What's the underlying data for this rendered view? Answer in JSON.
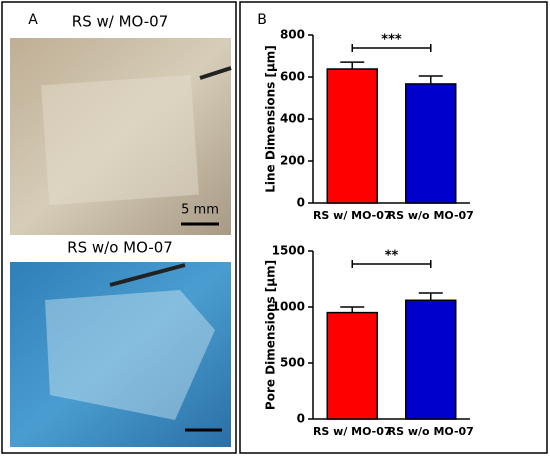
{
  "panel_a": {
    "label": "A",
    "photos": [
      {
        "caption": "RS w/ MO-07",
        "scale_bar": "5 mm"
      },
      {
        "caption": "RS w/o MO-07"
      }
    ]
  },
  "panel_b": {
    "label": "B"
  },
  "chart_data": [
    {
      "type": "bar",
      "y_label": "Line Dimensions [μm]",
      "categories": [
        "RS w/ MO-07",
        "RS w/o MO-07"
      ],
      "values": [
        638,
        567
      ],
      "errors": [
        33,
        38
      ],
      "colors": [
        "#ff0000",
        "#0000cc"
      ],
      "ylim": [
        0,
        800
      ],
      "yticks": [
        0,
        200,
        400,
        600,
        800
      ],
      "significance": "***"
    },
    {
      "type": "bar",
      "y_label": "Pore Dimensions [μm]",
      "categories": [
        "RS w/ MO-07",
        "RS w/o MO-07"
      ],
      "values": [
        950,
        1060
      ],
      "errors": [
        50,
        65
      ],
      "colors": [
        "#ff0000",
        "#0000cc"
      ],
      "ylim": [
        0,
        1500
      ],
      "yticks": [
        0,
        500,
        1000,
        1500
      ],
      "significance": "**"
    }
  ]
}
